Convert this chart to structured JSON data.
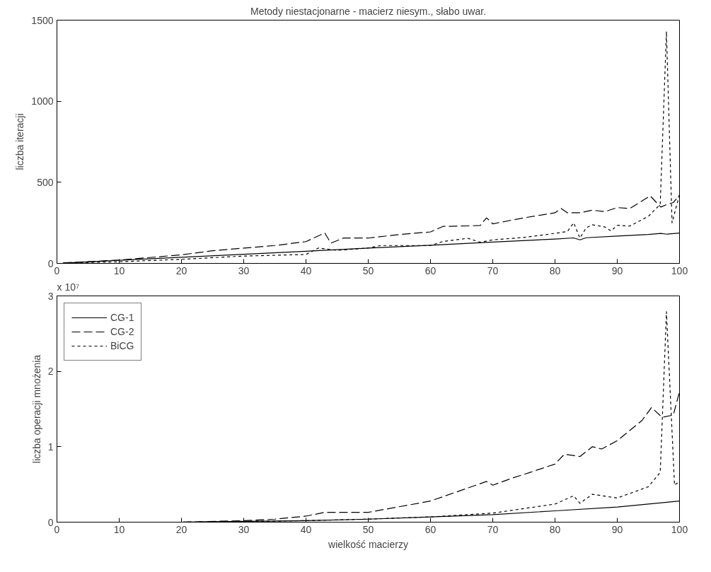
{
  "chart_data": [
    {
      "type": "line",
      "title": "Metody niestacjonarne - macierz niesym., słabo uwar.",
      "ylabel": "liczba iteracji",
      "xlim": [
        0,
        100
      ],
      "ylim": [
        0,
        1500
      ],
      "xticks": [
        0,
        10,
        20,
        30,
        40,
        50,
        60,
        70,
        80,
        90,
        100
      ],
      "yticks": [
        0,
        500,
        1000,
        1500
      ],
      "grid": false,
      "legend": false,
      "series": [
        {
          "color": "#000000",
          "line_style": "solid",
          "x": [
            1,
            10,
            20,
            30,
            40,
            50,
            60,
            70,
            80,
            83,
            84,
            85,
            90,
            95,
            97,
            98,
            100
          ],
          "values": [
            2,
            19,
            38,
            56,
            75,
            94,
            112,
            131,
            150,
            157,
            145,
            158,
            168,
            178,
            185,
            180,
            187
          ]
        },
        {
          "color": "#000000",
          "line_style": "dashed",
          "x": [
            1,
            10,
            20,
            25,
            30,
            35,
            40,
            43,
            44,
            46,
            50,
            55,
            60,
            62,
            66,
            68,
            69,
            70,
            75,
            80,
            81,
            82,
            84,
            86,
            88,
            90,
            92,
            95.3,
            97,
            98,
            99,
            100
          ],
          "values": [
            3,
            20,
            53,
            78,
            94,
            110,
            134,
            188,
            125,
            156,
            156,
            178,
            194,
            228,
            231,
            234,
            281,
            244,
            281,
            312,
            338,
            312,
            312,
            328,
            319,
            344,
            338,
            416,
            347,
            364,
            375,
            420
          ]
        },
        {
          "color": "#000000",
          "line_style": "dotted",
          "x": [
            1,
            10,
            20,
            30,
            40,
            42,
            45,
            50,
            52,
            55,
            60,
            62,
            66,
            68,
            70,
            75,
            80,
            82,
            83,
            84,
            85,
            86,
            88,
            89,
            90,
            92,
            95,
            96.9,
            97.9,
            98.8,
            100
          ],
          "values": [
            2,
            10,
            25,
            45,
            55,
            95,
            80,
            95,
            110,
            110,
            110,
            135,
            155,
            130,
            145,
            160,
            185,
            197,
            250,
            156,
            219,
            238,
            225,
            200,
            235,
            230,
            290,
            364,
            1430,
            250,
            425
          ]
        }
      ]
    },
    {
      "type": "line",
      "annotations": [
        "x 10⁷"
      ],
      "xlabel": "wielkość macierzy",
      "ylabel": "liczba operacji mnożenia",
      "xlim": [
        0,
        100
      ],
      "ylim": [
        0,
        3
      ],
      "xticks": [
        0,
        10,
        20,
        30,
        40,
        50,
        60,
        70,
        80,
        90,
        100
      ],
      "yticks": [
        0,
        1,
        2,
        3
      ],
      "grid": false,
      "legend": "top left",
      "series": [
        {
          "name": "CG-1",
          "color": "#000000",
          "line_style": "solid",
          "x": [
            1,
            20,
            30,
            40,
            50,
            60,
            70,
            80,
            90,
            100
          ],
          "values": [
            0,
            0,
            0.01,
            0.02,
            0.04,
            0.07,
            0.1,
            0.15,
            0.2,
            0.28
          ]
        },
        {
          "name": "CG-2",
          "color": "#000000",
          "line_style": "dashed",
          "x": [
            1,
            20,
            30,
            35,
            40,
            43,
            50,
            60,
            69,
            70,
            73,
            76,
            80,
            81.5,
            84,
            86,
            87.5,
            90,
            94,
            95.5,
            97.2,
            99,
            100
          ],
          "values": [
            0,
            0,
            0.02,
            0.04,
            0.08,
            0.13,
            0.13,
            0.28,
            0.54,
            0.49,
            0.58,
            0.66,
            0.77,
            0.9,
            0.87,
            1,
            0.97,
            1.08,
            1.35,
            1.52,
            1.39,
            1.42,
            1.73
          ]
        },
        {
          "name": "BiCG",
          "color": "#000000",
          "line_style": "dotted",
          "x": [
            1,
            20,
            30,
            40,
            50,
            60,
            70,
            80,
            83,
            84,
            86,
            90,
            92,
            95,
            96.9,
            97.9,
            99.2,
            100
          ],
          "values": [
            0,
            0,
            0.01,
            0.02,
            0.04,
            0.07,
            0.12,
            0.24,
            0.35,
            0.25,
            0.37,
            0.32,
            0.38,
            0.47,
            0.66,
            2.79,
            0.49,
            0.54
          ]
        }
      ]
    }
  ]
}
